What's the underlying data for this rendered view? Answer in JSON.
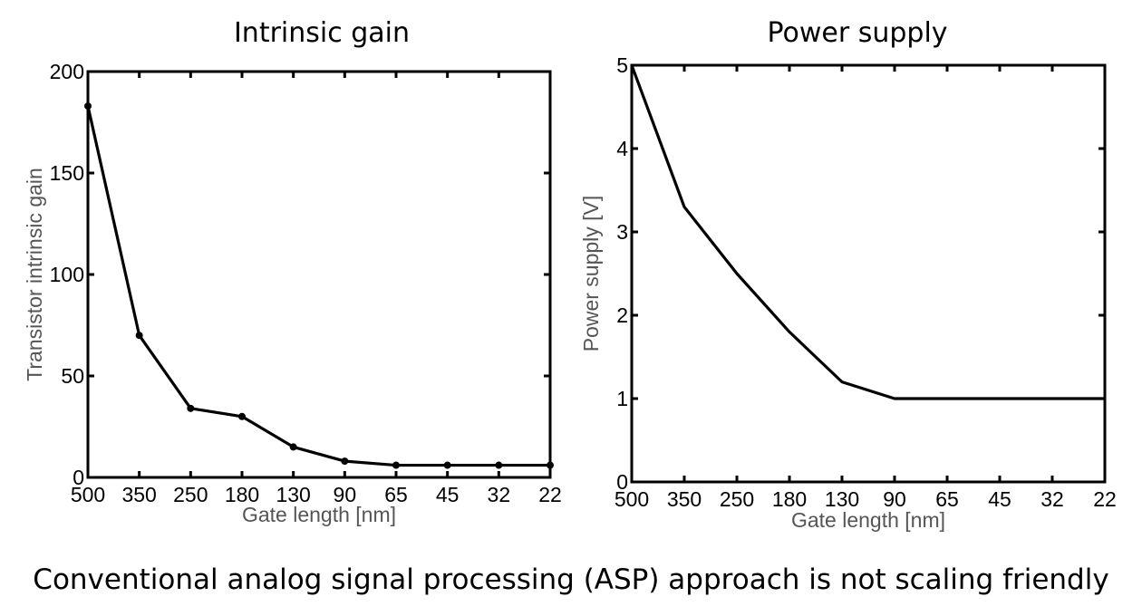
{
  "caption": "Conventional analog signal processing (ASP) approach is not scaling friendly",
  "chart_data": [
    {
      "type": "line",
      "title": "Intrinsic gain",
      "xlabel": "Gate length [nm]",
      "ylabel": "Transistor intrinsic gain",
      "categories": [
        "500",
        "350",
        "250",
        "180",
        "130",
        "90",
        "65",
        "45",
        "32",
        "22"
      ],
      "yticks": [
        "0",
        "50",
        "100",
        "150",
        "200"
      ],
      "ylim": [
        0,
        200
      ],
      "markers": true,
      "series": [
        {
          "values": [
            183,
            70,
            34,
            30,
            15,
            8,
            6,
            6,
            6,
            6
          ]
        }
      ]
    },
    {
      "type": "line",
      "title": "Power supply",
      "xlabel": "Gate length [nm]",
      "ylabel": "Power supply [V]",
      "categories": [
        "500",
        "350",
        "250",
        "180",
        "130",
        "90",
        "65",
        "45",
        "32",
        "22"
      ],
      "yticks": [
        "0",
        "1",
        "2",
        "3",
        "4",
        "5"
      ],
      "ylim": [
        0,
        5
      ],
      "markers": false,
      "series": [
        {
          "values": [
            5,
            3.3,
            2.5,
            1.8,
            1.2,
            1.0,
            1.0,
            1.0,
            1.0,
            1.0
          ]
        }
      ]
    }
  ]
}
